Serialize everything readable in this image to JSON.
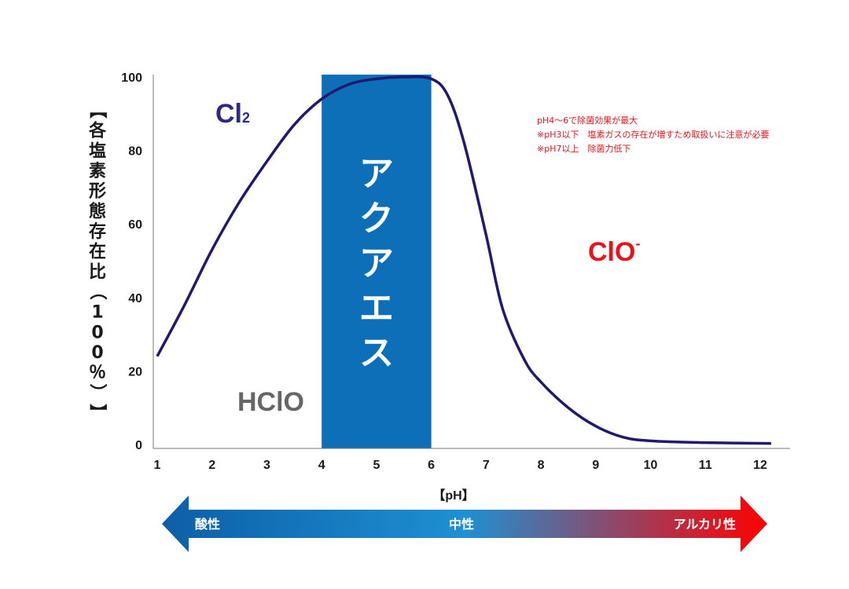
{
  "chart_data": {
    "type": "line",
    "title": "",
    "xlabel": "【pH】",
    "ylabel": "【各塩素形態存在比（100％）】",
    "ylim": [
      0,
      100
    ],
    "xlim": [
      1,
      12.2
    ],
    "x_ticks": [
      "1",
      "2",
      "3",
      "4",
      "5",
      "6",
      "7",
      "8",
      "9",
      "10",
      "11",
      "12"
    ],
    "y_ticks": [
      "0",
      "20",
      "40",
      "60",
      "80",
      "100"
    ],
    "series": [
      {
        "color": "#1f1a6e",
        "points": [
          [
            1,
            24
          ],
          [
            1.5,
            38
          ],
          [
            2,
            53
          ],
          [
            2.5,
            66
          ],
          [
            3,
            77
          ],
          [
            3.5,
            87
          ],
          [
            4,
            94
          ],
          [
            4.5,
            98
          ],
          [
            5,
            99.5
          ],
          [
            5.5,
            100
          ],
          [
            6,
            99.5
          ],
          [
            6.3,
            95
          ],
          [
            6.6,
            82
          ],
          [
            7,
            57
          ],
          [
            7.3,
            37
          ],
          [
            7.7,
            23
          ],
          [
            8,
            17
          ],
          [
            8.5,
            10
          ],
          [
            9,
            5
          ],
          [
            9.5,
            2
          ],
          [
            10,
            1
          ],
          [
            11,
            0.5
          ],
          [
            12.2,
            0.3
          ]
        ]
      }
    ],
    "highlight_band": {
      "x_start": 4,
      "x_end": 6,
      "label": "アクアエス",
      "color": "#0d6fb8"
    },
    "annotations": {
      "cl2": {
        "main": "Cl",
        "sub": "2",
        "color": "#2b2a88"
      },
      "hclo": {
        "text": "HClO",
        "color": "#666666"
      },
      "clo": {
        "main": "ClO",
        "sup": "-",
        "color": "#e8121a"
      },
      "notes": [
        "pH4～6で除菌効果が最大",
        "※pH3以下　塩素ガスの存在が増すため取扱いに注意が必要",
        "※pH7以上　除菌力低下"
      ],
      "notes_color": "#e8121a"
    },
    "grid": false,
    "legend": "none"
  },
  "arrow": {
    "left_label": "酸性",
    "center_label": "中性",
    "right_label": "アルカリ性",
    "colors": {
      "left": "#0d5fa6",
      "center": "#1e90d2",
      "right": "#ff0000"
    }
  }
}
